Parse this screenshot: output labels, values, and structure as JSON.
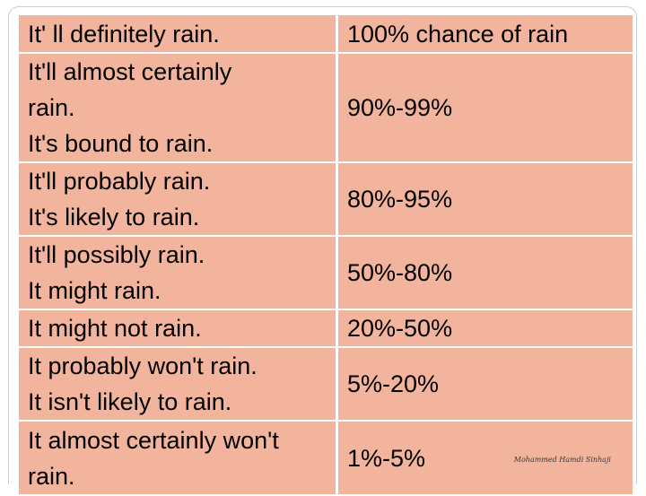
{
  "rows": [
    {
      "phrase_lines": [
        "It' ll definitely rain."
      ],
      "probability": "100% chance of rain"
    },
    {
      "phrase_lines": [
        "It'll almost certainly",
        "rain.",
        "It's bound to rain."
      ],
      "probability": "90%-99%"
    },
    {
      "phrase_lines": [
        "It'll probably rain.",
        "It's likely to rain."
      ],
      "probability": "80%-95%"
    },
    {
      "phrase_lines": [
        "It'll possibly rain.",
        "It might rain."
      ],
      "probability": "50%-80%"
    },
    {
      "phrase_lines": [
        "It might not rain."
      ],
      "probability": "20%-50%"
    },
    {
      "phrase_lines": [
        "It probably won't rain.",
        "It isn't likely to rain."
      ],
      "probability": "5%-20%"
    },
    {
      "phrase_lines": [
        "It almost certainly won't",
        "rain."
      ],
      "probability": "1%-5%"
    }
  ],
  "signature": "Mohammed Hamdi Sinhaji",
  "colors": {
    "cell_background": "#f2b49c",
    "cell_border": "#ffffff",
    "text": "#000000"
  }
}
